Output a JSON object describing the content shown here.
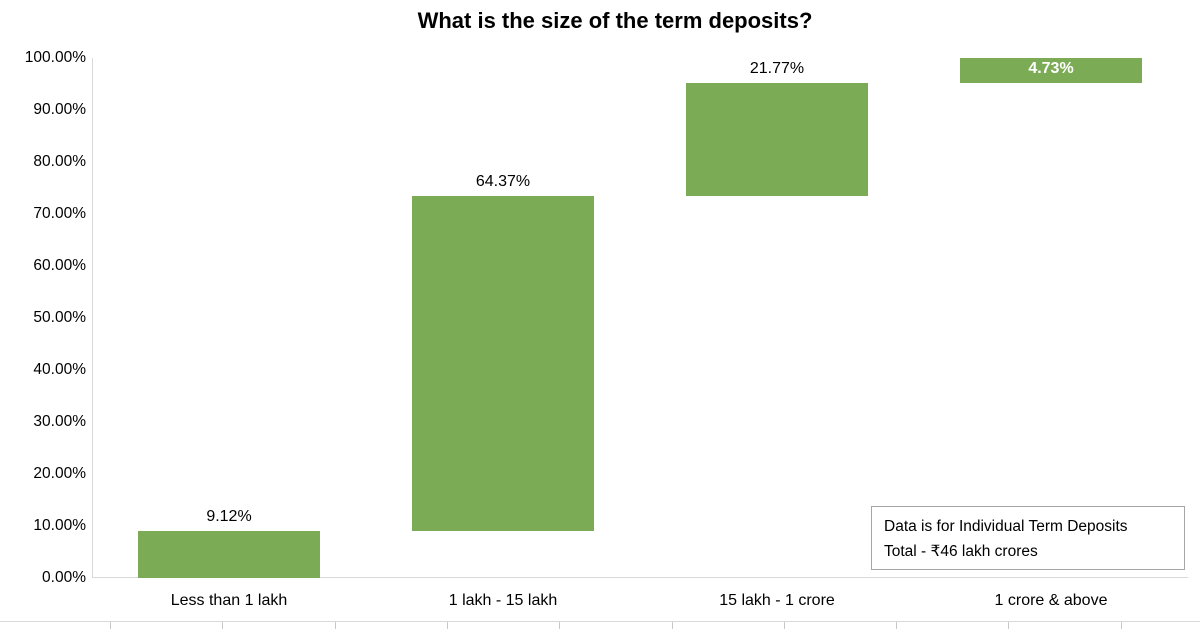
{
  "title": "What is the size of the term deposits?",
  "annotation": {
    "line1": "Data is for Individual Term Deposits",
    "line2": "Total - ₹46 lakh crores"
  },
  "colors": {
    "bar": "#7CAB55",
    "axis_line": "#D9D9D9",
    "inside_label_text": "#FFFFFF",
    "annotation_border": "#A6A6A6",
    "text": "#000000"
  },
  "chart_data": {
    "type": "bar",
    "subtype": "waterfall-floating-bars",
    "title": "What is the size of the term deposits?",
    "categories": [
      "Less than 1 lakh",
      "1 lakh - 15 lakh",
      "15 lakh - 1 crore",
      "1 crore & above"
    ],
    "values": [
      9.12,
      64.37,
      21.77,
      4.73
    ],
    "cumulative_start": [
      0,
      9.12,
      73.49,
      95.26
    ],
    "point_labels": [
      "9.12%",
      "64.37%",
      "21.77%",
      "4.73%"
    ],
    "point_label_positions": [
      "above",
      "above",
      "above",
      "inside"
    ],
    "xlabel": "",
    "ylabel": "",
    "ylim": [
      0,
      100
    ],
    "y_ticks": [
      "100.00%",
      "90.00%",
      "80.00%",
      "70.00%",
      "60.00%",
      "50.00%",
      "40.00%",
      "30.00%",
      "20.00%",
      "10.00%",
      "0.00%"
    ],
    "grid": false,
    "legend": false,
    "annotation_text": "Data is for Individual Term Deposits\nTotal - ₹46 lakh crores"
  }
}
